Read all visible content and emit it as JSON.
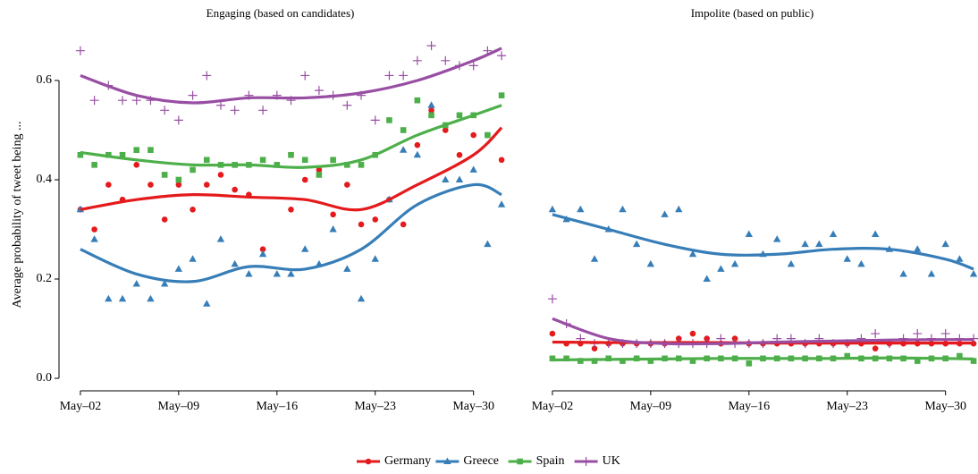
{
  "chart_data": [
    {
      "type": "scatter",
      "title": "Engaging (based on candidates)",
      "y_label": "Average probability of tweet being ...",
      "x": [
        2,
        3,
        4,
        5,
        6,
        7,
        8,
        9,
        10,
        11,
        12,
        13,
        14,
        15,
        16,
        17,
        18,
        19,
        20,
        21,
        22,
        23,
        24,
        25,
        26,
        27,
        28,
        29,
        30,
        31,
        32
      ],
      "xlim": [
        0,
        34
      ],
      "ylim": [
        -0.02,
        0.68
      ],
      "xticks": [
        {
          "value": 2,
          "label": "May–02"
        },
        {
          "value": 9,
          "label": "May–09"
        },
        {
          "value": 16,
          "label": "May–16"
        },
        {
          "value": 23,
          "label": "May–23"
        },
        {
          "value": 30,
          "label": "May–30"
        }
      ],
      "yticks": [
        {
          "value": 0,
          "label": "0.0"
        },
        0.2,
        0.4,
        0.6
      ],
      "trend_x": [
        2,
        6,
        10,
        14,
        18,
        22,
        26,
        30,
        32
      ],
      "series": [
        {
          "name": "Germany",
          "color": "#e41a1c",
          "marker": "circle",
          "values": [
            0.34,
            0.3,
            0.39,
            0.36,
            0.43,
            0.39,
            0.32,
            0.39,
            0.34,
            0.39,
            0.41,
            0.38,
            0.37,
            0.26,
            0.43,
            0.34,
            0.4,
            0.42,
            0.33,
            0.39,
            0.31,
            0.32,
            0.36,
            0.31,
            0.47,
            0.54,
            0.5,
            0.45,
            0.49,
            0.49,
            0.44
          ],
          "trend": [
            0.34,
            0.36,
            0.37,
            0.365,
            0.36,
            0.34,
            0.39,
            0.45,
            0.505
          ]
        },
        {
          "name": "Greece",
          "color": "#377eb8",
          "marker": "triangle",
          "values": [
            0.34,
            0.28,
            0.16,
            0.16,
            0.19,
            0.16,
            0.19,
            0.22,
            0.24,
            0.15,
            0.28,
            0.23,
            0.21,
            0.25,
            0.21,
            0.21,
            0.26,
            0.23,
            0.3,
            0.22,
            0.16,
            0.24,
            0.36,
            0.46,
            0.45,
            0.55,
            0.4,
            0.4,
            0.42,
            0.27,
            0.35
          ],
          "trend": [
            0.26,
            0.21,
            0.195,
            0.225,
            0.22,
            0.26,
            0.35,
            0.39,
            0.37
          ]
        },
        {
          "name": "Spain",
          "color": "#4daf4a",
          "marker": "square",
          "values": [
            0.45,
            0.43,
            0.45,
            0.45,
            0.46,
            0.46,
            0.41,
            0.4,
            0.42,
            0.44,
            0.43,
            0.43,
            0.43,
            0.44,
            0.43,
            0.45,
            0.44,
            0.41,
            0.44,
            0.43,
            0.43,
            0.45,
            0.52,
            0.5,
            0.56,
            0.53,
            0.51,
            0.53,
            0.53,
            0.49,
            0.57
          ],
          "trend": [
            0.455,
            0.44,
            0.43,
            0.43,
            0.425,
            0.44,
            0.49,
            0.53,
            0.55
          ]
        },
        {
          "name": "UK",
          "color": "#984ea3",
          "marker": "plus",
          "values": [
            0.66,
            0.56,
            0.59,
            0.56,
            0.56,
            0.56,
            0.54,
            0.52,
            0.57,
            0.61,
            0.55,
            0.54,
            0.57,
            0.54,
            0.57,
            0.56,
            0.61,
            0.58,
            0.57,
            0.55,
            0.57,
            0.52,
            0.61,
            0.61,
            0.64,
            0.67,
            0.64,
            0.63,
            0.63,
            0.66,
            0.65
          ],
          "trend": [
            0.61,
            0.57,
            0.555,
            0.565,
            0.565,
            0.575,
            0.6,
            0.64,
            0.665
          ]
        }
      ]
    },
    {
      "type": "scatter",
      "title": "Impolite (based on public)",
      "x": [
        2,
        3,
        4,
        5,
        6,
        7,
        8,
        9,
        10,
        11,
        12,
        13,
        14,
        15,
        16,
        17,
        18,
        19,
        20,
        21,
        22,
        23,
        24,
        25,
        26,
        27,
        28,
        29,
        30,
        31,
        32
      ],
      "xlim": [
        0,
        34
      ],
      "ylim": [
        -0.02,
        0.68
      ],
      "xticks": [
        {
          "value": 2,
          "label": "May–02"
        },
        {
          "value": 9,
          "label": "May–09"
        },
        {
          "value": 16,
          "label": "May–16"
        },
        {
          "value": 23,
          "label": "May–23"
        },
        {
          "value": 30,
          "label": "May–30"
        }
      ],
      "trend_x": [
        2,
        6,
        10,
        14,
        18,
        22,
        26,
        30,
        32
      ],
      "series": [
        {
          "name": "Germany",
          "color": "#e41a1c",
          "marker": "circle",
          "values": [
            0.09,
            0.07,
            0.07,
            0.06,
            0.07,
            0.07,
            0.07,
            0.07,
            0.07,
            0.08,
            0.09,
            0.08,
            0.07,
            0.08,
            0.07,
            0.07,
            0.07,
            0.07,
            0.07,
            0.07,
            0.07,
            0.07,
            0.07,
            0.06,
            0.07,
            0.07,
            0.07,
            0.07,
            0.07,
            0.07,
            0.07
          ],
          "trend": [
            0.073,
            0.072,
            0.072,
            0.072,
            0.071,
            0.071,
            0.071,
            0.071,
            0.071
          ]
        },
        {
          "name": "Greece",
          "color": "#377eb8",
          "marker": "triangle",
          "values": [
            0.34,
            0.32,
            0.34,
            0.24,
            0.3,
            0.34,
            0.27,
            0.23,
            0.33,
            0.34,
            0.25,
            0.2,
            0.22,
            0.23,
            0.29,
            0.25,
            0.28,
            0.23,
            0.27,
            0.27,
            0.29,
            0.24,
            0.23,
            0.29,
            0.26,
            0.21,
            0.26,
            0.21,
            0.27,
            0.24,
            0.21
          ],
          "trend": [
            0.33,
            0.3,
            0.27,
            0.25,
            0.25,
            0.26,
            0.26,
            0.24,
            0.22
          ]
        },
        {
          "name": "Spain",
          "color": "#4daf4a",
          "marker": "square",
          "values": [
            0.04,
            0.04,
            0.035,
            0.035,
            0.04,
            0.035,
            0.04,
            0.035,
            0.04,
            0.04,
            0.035,
            0.04,
            0.04,
            0.04,
            0.03,
            0.04,
            0.04,
            0.04,
            0.04,
            0.04,
            0.04,
            0.045,
            0.04,
            0.04,
            0.04,
            0.04,
            0.035,
            0.04,
            0.04,
            0.045,
            0.035
          ],
          "trend": [
            0.037,
            0.038,
            0.039,
            0.04,
            0.04,
            0.04,
            0.041,
            0.04,
            0.039
          ]
        },
        {
          "name": "UK",
          "color": "#984ea3",
          "marker": "plus",
          "values": [
            0.16,
            0.11,
            0.08,
            0.07,
            0.07,
            0.07,
            0.07,
            0.07,
            0.07,
            0.07,
            0.07,
            0.07,
            0.08,
            0.07,
            0.07,
            0.07,
            0.08,
            0.08,
            0.07,
            0.08,
            0.07,
            0.07,
            0.08,
            0.09,
            0.07,
            0.08,
            0.09,
            0.08,
            0.09,
            0.08,
            0.08
          ],
          "trend": [
            0.12,
            0.08,
            0.07,
            0.07,
            0.073,
            0.075,
            0.077,
            0.078,
            0.078
          ]
        }
      ]
    }
  ]
}
